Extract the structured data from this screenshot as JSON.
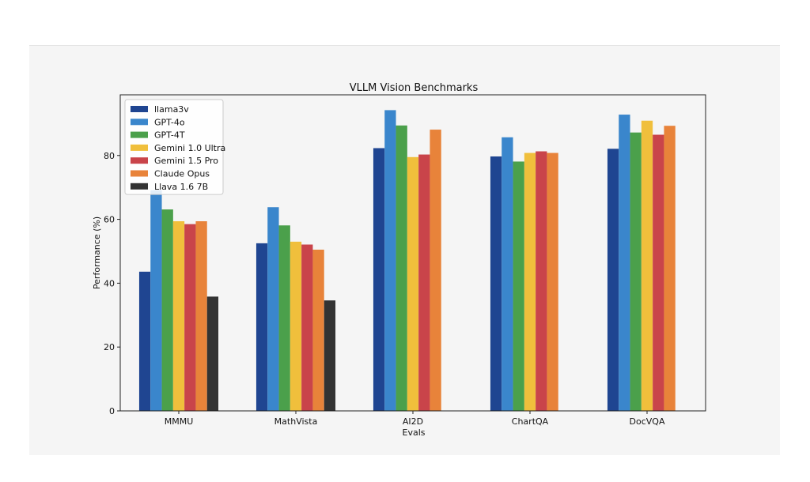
{
  "chart_data": {
    "type": "bar",
    "title": "VLLM Vision Benchmarks",
    "xlabel": "Evals",
    "ylabel": "Performance (%)",
    "ylim": [
      0,
      99
    ],
    "yticks": [
      0,
      20,
      40,
      60,
      80
    ],
    "grid": false,
    "legend_position": "top-left",
    "categories": [
      "MMMU",
      "MathVista",
      "AI2D",
      "ChartQA",
      "DocVQA"
    ],
    "series": [
      {
        "name": "llama3v",
        "color": "#1f4591",
        "values": [
          43.6,
          52.5,
          82.3,
          79.7,
          82.1
        ]
      },
      {
        "name": "GPT-4o",
        "color": "#3a86cc",
        "values": [
          69.1,
          63.8,
          94.2,
          85.7,
          92.8
        ]
      },
      {
        "name": "GPT-4T",
        "color": "#4ba04b",
        "values": [
          63.1,
          58.1,
          89.4,
          78.1,
          87.2
        ]
      },
      {
        "name": "Gemini 1.0 Ultra",
        "color": "#f0bf3c",
        "values": [
          59.4,
          53.0,
          79.5,
          80.8,
          90.9
        ]
      },
      {
        "name": "Gemini 1.5 Pro",
        "color": "#c9444a",
        "values": [
          58.5,
          52.1,
          80.3,
          81.3,
          86.5
        ]
      },
      {
        "name": "Claude Opus",
        "color": "#e8833a",
        "values": [
          59.4,
          50.5,
          88.1,
          80.8,
          89.3
        ]
      },
      {
        "name": "Llava 1.6 7B",
        "color": "#333333",
        "values": [
          35.8,
          34.6,
          null,
          null,
          null
        ]
      }
    ]
  }
}
